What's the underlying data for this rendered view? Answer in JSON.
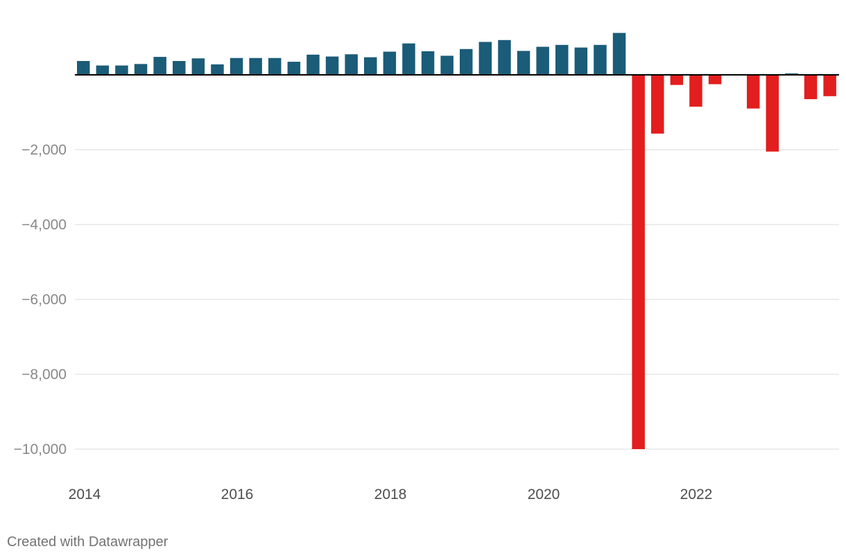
{
  "chart_data": {
    "type": "bar",
    "title": "",
    "xlabel": "",
    "ylabel": "",
    "x": [
      "2014 Q1",
      "2014 Q2",
      "2014 Q3",
      "2014 Q4",
      "2015 Q1",
      "2015 Q2",
      "2015 Q3",
      "2015 Q4",
      "2016 Q1",
      "2016 Q2",
      "2016 Q3",
      "2016 Q4",
      "2017 Q1",
      "2017 Q2",
      "2017 Q3",
      "2017 Q4",
      "2018 Q1",
      "2018 Q2",
      "2018 Q3",
      "2018 Q4",
      "2019 Q1",
      "2019 Q2",
      "2019 Q3",
      "2019 Q4",
      "2020 Q1",
      "2020 Q2",
      "2020 Q3",
      "2020 Q4",
      "2021 Q1",
      "2021 Q2",
      "2021 Q3",
      "2021 Q4",
      "2022 Q1",
      "2022 Q2",
      "2022 Q3",
      "2022 Q4",
      "2023 Q1",
      "2023 Q2",
      "2023 Q3",
      "2023 Q4"
    ],
    "values": [
      370,
      250,
      250,
      290,
      480,
      370,
      440,
      280,
      450,
      450,
      450,
      350,
      540,
      490,
      550,
      470,
      620,
      840,
      630,
      510,
      690,
      880,
      930,
      640,
      750,
      800,
      730,
      800,
      1120,
      -10000,
      -1570,
      -270,
      -850,
      -250,
      0,
      -900,
      -2050,
      40,
      -650,
      -570
    ],
    "ylim": [
      -10000,
      1200
    ],
    "y_ticks": [
      -10000,
      -8000,
      -6000,
      -4000,
      -2000
    ],
    "y_tick_labels": [
      "−10,000",
      "−8,000",
      "−6,000",
      "−4,000",
      "−2,000"
    ],
    "x_tick_labels": [
      "2014",
      "2016",
      "2018",
      "2020",
      "2022"
    ],
    "grid": true,
    "colors": {
      "positive": "#1b5c78",
      "negative": "#e31e1e",
      "grid": "#e2e2e2",
      "baseline": "#000000",
      "tick_text": "#888888",
      "x_tick_text": "#4d4d4d"
    }
  },
  "footer": {
    "credit": "Created with Datawrapper"
  }
}
